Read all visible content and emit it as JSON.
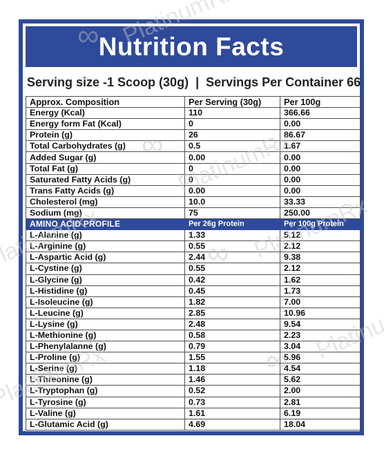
{
  "title": "Nutrition Facts",
  "serving": {
    "size": "Serving size -1 Scoop (30g)",
    "separator": "|",
    "per_container": "Servings Per Container 66"
  },
  "header": {
    "col1": "Approx. Composition",
    "col2": "Per Serving  (30g)",
    "col3": "Per 100g"
  },
  "nutrients": [
    {
      "name": "Energy (Kcal)",
      "per_serving": "110",
      "per_100g": "366.66"
    },
    {
      "name": "Energy form Fat (Kcal)",
      "per_serving": "0",
      "per_100g": "0.00"
    },
    {
      "name": "Protein (g)",
      "per_serving": "26",
      "per_100g": "86.67"
    },
    {
      "name": "Total Carbohydrates (g)",
      "per_serving": "0.5",
      "per_100g": "1.67"
    },
    {
      "name": "Added Sugar (g)",
      "per_serving": "0.00",
      "per_100g": "0.00"
    },
    {
      "name": "Total Fat (g)",
      "per_serving": "0",
      "per_100g": "0.00"
    },
    {
      "name": "Saturated Fatty Acids (g)",
      "per_serving": "0",
      "per_100g": "0.00"
    },
    {
      "name": "Trans Fatty Acids (g)",
      "per_serving": "0.00",
      "per_100g": "0.00"
    },
    {
      "name": "Cholesterol (mg)",
      "per_serving": "10.0",
      "per_100g": "33.33"
    },
    {
      "name": "Sodium (mg)",
      "per_serving": "75",
      "per_100g": "250.00"
    }
  ],
  "amino_header": {
    "col1": "AMINO ACID PROFILE",
    "col2": "Per 26g Protein",
    "col3": "Per 100g Protein"
  },
  "amino_acids": [
    {
      "name": "L-Alanine (g)",
      "per_26g": "1.33",
      "per_100g": "5.12"
    },
    {
      "name": "L-Arginine (g)",
      "per_26g": "0.55",
      "per_100g": "2.12"
    },
    {
      "name": "L-Aspartic Acid (g)",
      "per_26g": "2.44",
      "per_100g": "9.38"
    },
    {
      "name": "L-Cystine (g)",
      "per_26g": "0.55",
      "per_100g": "2.12"
    },
    {
      "name": "L-Glycine (g)",
      "per_26g": "0.42",
      "per_100g": "1.62"
    },
    {
      "name": "L-Histidine (g)",
      "per_26g": "0.45",
      "per_100g": "1.73"
    },
    {
      "name": "L-Isoleucine (g)",
      "per_26g": "1.82",
      "per_100g": "7.00"
    },
    {
      "name": "L-Leucine (g)",
      "per_26g": "2.85",
      "per_100g": "10.96"
    },
    {
      "name": "L-Lysine (g)",
      "per_26g": "2.48",
      "per_100g": "9.54"
    },
    {
      "name": "L-Methionine (g)",
      "per_26g": "0.58",
      "per_100g": "2.23"
    },
    {
      "name": "L-Phenylalanne (g)",
      "per_26g": "0.79",
      "per_100g": "3.04"
    },
    {
      "name": "L-Proline (g)",
      "per_26g": "1.55",
      "per_100g": "5.96"
    },
    {
      "name": "L-Serine (g)",
      "per_26g": "1.18",
      "per_100g": "4.54"
    },
    {
      "name": "L-Threonine (g)",
      "per_26g": "1.46",
      "per_100g": "5.62"
    },
    {
      "name": "L-Tryptophan (g)",
      "per_26g": "0.52",
      "per_100g": "2.00"
    },
    {
      "name": "L-Tyrosine (g)",
      "per_26g": "0.73",
      "per_100g": "2.81"
    },
    {
      "name": "L-Valine (g)",
      "per_26g": "1.61",
      "per_100g": "6.19"
    },
    {
      "name": "L-Glutamic Acid (g)",
      "per_26g": "4.69",
      "per_100g": "18.04"
    }
  ],
  "watermark": "PlatinumRx",
  "colors": {
    "brand_blue": "#2f4a9a",
    "grid": "#4f4f4f",
    "text": "#111111",
    "watermark": "#c9c9c9"
  }
}
